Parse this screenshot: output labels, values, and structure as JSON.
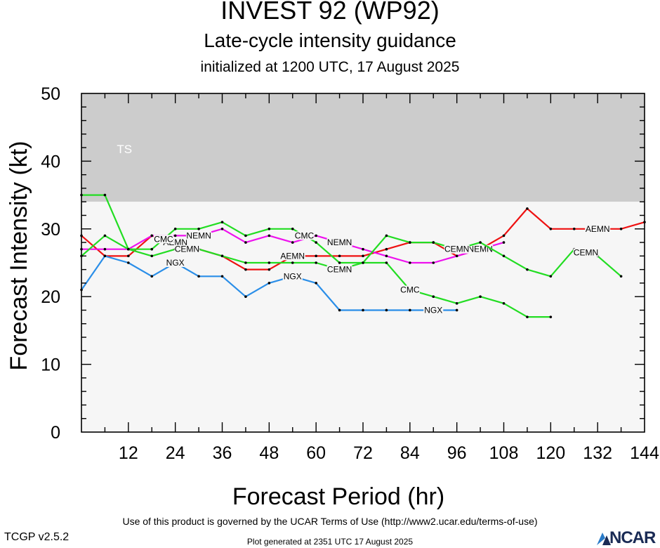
{
  "header": {
    "title": "INVEST 92 (WP92)",
    "subtitle": "Late-cycle intensity guidance",
    "init_line": "initialized at 1200 UTC, 17 August 2025"
  },
  "footer": {
    "terms": "Use of this product is governed by the UCAR Terms of Use (http://www2.ucar.edu/terms-of-use)",
    "version": "TCGP v2.5.2",
    "plot_generated": "Plot generated at 2351 UTC   17 August 2025",
    "logo_text": "NCAR"
  },
  "chart_data": {
    "type": "line",
    "title": "INVEST 92 (WP92)",
    "xlabel": "Forecast Period (hr)",
    "ylabel": "Forecast Intensity (kt)",
    "xlim": [
      0,
      144
    ],
    "ylim": [
      0,
      50
    ],
    "xticks": [
      12,
      24,
      36,
      48,
      60,
      72,
      84,
      96,
      108,
      120,
      132,
      144
    ],
    "yticks": [
      0,
      10,
      20,
      30,
      40,
      50
    ],
    "grid": false,
    "bands": [
      {
        "label": "TS",
        "ymin": 34,
        "ymax": 50,
        "color": "#cccccc"
      },
      {
        "label": "",
        "ymin": 0,
        "ymax": 34,
        "color": "#f6f6f6"
      }
    ],
    "series": [
      {
        "name": "AEMN",
        "color": "#ee1111",
        "x": [
          0,
          6,
          12,
          18,
          24,
          30,
          36,
          42,
          48,
          54,
          60,
          66,
          72,
          78,
          84,
          90,
          96,
          102,
          108,
          114,
          120,
          126,
          132,
          138,
          144
        ],
        "y": [
          29,
          26,
          26,
          29,
          28,
          27,
          26,
          24,
          24,
          26,
          26,
          26,
          26,
          27,
          28,
          28,
          26,
          27,
          29,
          33,
          30,
          30,
          30,
          30,
          31
        ],
        "labels_at": [
          24,
          54,
          132
        ]
      },
      {
        "name": "NEMN",
        "color": "#ee11ee",
        "x": [
          0,
          6,
          12,
          18,
          24,
          30,
          36,
          42,
          48,
          54,
          60,
          66,
          72,
          78,
          84,
          90,
          96,
          102,
          108
        ],
        "y": [
          27,
          27,
          27,
          29,
          29,
          29,
          30,
          28,
          29,
          28,
          29,
          28,
          27,
          26,
          25,
          25,
          26,
          27,
          28
        ],
        "labels_at": [
          30,
          66,
          102
        ]
      },
      {
        "name": "CMC",
        "color": "#22dd22",
        "x": [
          0,
          6,
          12,
          18,
          24,
          30,
          36,
          42,
          48,
          54,
          60,
          66,
          72,
          78,
          84,
          90,
          96,
          102,
          108,
          114,
          120
        ],
        "y": [
          35,
          35,
          27,
          27,
          30,
          30,
          31,
          29,
          30,
          30,
          28,
          25,
          25,
          25,
          21,
          20,
          19,
          20,
          19,
          17,
          17
        ],
        "labels_at": [
          21,
          57,
          84
        ]
      },
      {
        "name": "CEMN",
        "color": "#22dd22",
        "x": [
          0,
          6,
          12,
          18,
          24,
          30,
          36,
          42,
          48,
          54,
          60,
          66,
          72,
          78,
          84,
          90,
          96,
          102,
          108,
          114,
          120,
          126,
          132,
          138
        ],
        "y": [
          26,
          29,
          27,
          26,
          27,
          27,
          26,
          25,
          25,
          25,
          25,
          24,
          25,
          29,
          28,
          28,
          27,
          28,
          26,
          24,
          23,
          27,
          26,
          23
        ],
        "labels_at": [
          27,
          66,
          96,
          129
        ]
      },
      {
        "name": "NGX",
        "color": "#2a8ee8",
        "x": [
          0,
          6,
          12,
          18,
          24,
          30,
          36,
          42,
          48,
          54,
          60,
          66,
          72,
          78,
          84,
          90,
          96
        ],
        "y": [
          21,
          26,
          25,
          23,
          25,
          23,
          23,
          20,
          22,
          23,
          22,
          18,
          18,
          18,
          18,
          18,
          18
        ],
        "labels_at": [
          24,
          54,
          90
        ]
      }
    ]
  }
}
